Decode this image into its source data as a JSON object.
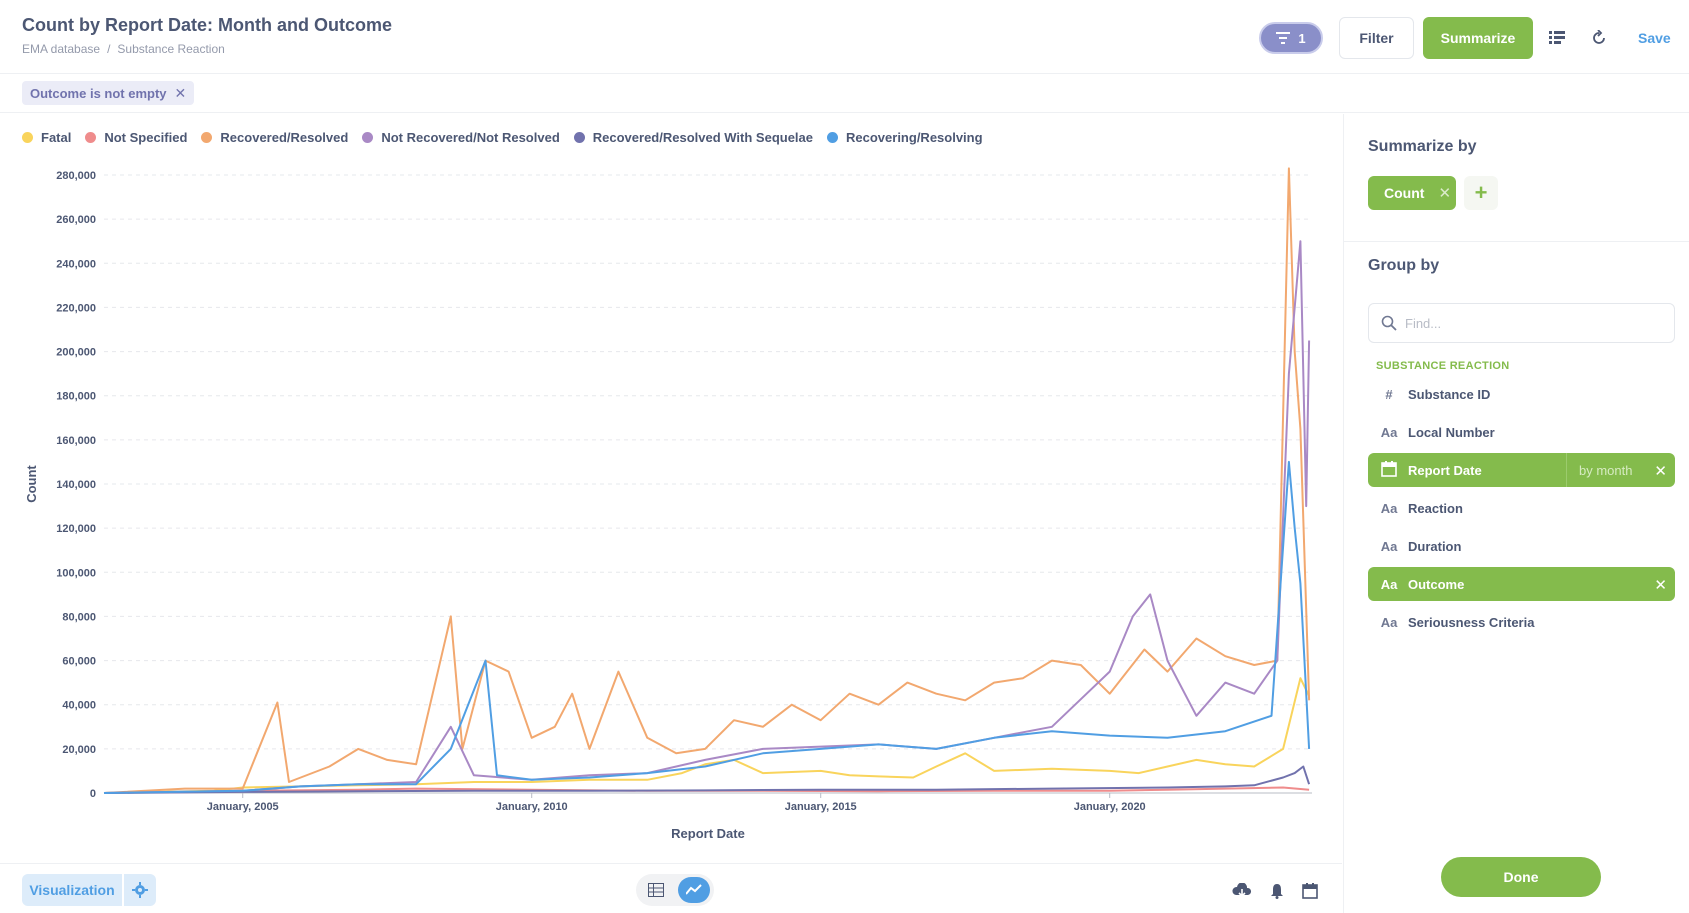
{
  "header": {
    "title": "Count by Report Date: Month and Outcome",
    "breadcrumb": [
      "EMA database",
      "Substance Reaction"
    ],
    "filter_count": "1",
    "filter_label": "Filter",
    "summarize_label": "Summarize",
    "save_label": "Save"
  },
  "filters": [
    {
      "label": "Outcome is not empty"
    }
  ],
  "chart_data": {
    "type": "line",
    "xlabel": "Report Date",
    "ylabel": "Count",
    "ylim": [
      0,
      280000
    ],
    "y_ticks": [
      "0",
      "20,000",
      "40,000",
      "60,000",
      "80,000",
      "100,000",
      "120,000",
      "140,000",
      "160,000",
      "180,000",
      "200,000",
      "220,000",
      "240,000",
      "260,000",
      "280,000"
    ],
    "x_ticks": [
      "January, 2005",
      "January, 2010",
      "January, 2015",
      "January, 2020"
    ],
    "x_tick_years": [
      2005,
      2010,
      2015,
      2020
    ],
    "xlim": [
      2002.6,
      2023.5
    ],
    "legend_position": "top-left",
    "grid": true,
    "series": [
      {
        "name": "Fatal",
        "color": "#f9d45c",
        "points": [
          [
            2002.6,
            0
          ],
          [
            2004.5,
            1000
          ],
          [
            2005,
            2500
          ],
          [
            2007,
            3500
          ],
          [
            2008,
            4000
          ],
          [
            2009,
            5000
          ],
          [
            2010,
            5000
          ],
          [
            2011,
            6000
          ],
          [
            2012,
            6000
          ],
          [
            2012.6,
            9000
          ],
          [
            2013,
            13000
          ],
          [
            2013.5,
            15000
          ],
          [
            2014,
            9000
          ],
          [
            2015,
            10000
          ],
          [
            2015.5,
            8000
          ],
          [
            2016,
            7500
          ],
          [
            2016.6,
            7000
          ],
          [
            2017,
            12000
          ],
          [
            2017.5,
            18000
          ],
          [
            2018,
            10000
          ],
          [
            2019,
            11000
          ],
          [
            2020,
            10000
          ],
          [
            2020.5,
            9000
          ],
          [
            2021,
            12000
          ],
          [
            2021.5,
            15000
          ],
          [
            2022,
            13000
          ],
          [
            2022.5,
            12000
          ],
          [
            2023,
            20000
          ],
          [
            2023.3,
            52000
          ],
          [
            2023.45,
            44000
          ]
        ]
      },
      {
        "name": "Not Specified",
        "color": "#ef8c8c",
        "points": [
          [
            2002.6,
            0
          ],
          [
            2004.5,
            500
          ],
          [
            2005,
            1000
          ],
          [
            2007,
            1500
          ],
          [
            2008,
            2000
          ],
          [
            2010,
            1500
          ],
          [
            2012,
            1000
          ],
          [
            2014,
            1000
          ],
          [
            2016,
            800
          ],
          [
            2018,
            1000
          ],
          [
            2020,
            1000
          ],
          [
            2021,
            1500
          ],
          [
            2022,
            2000
          ],
          [
            2023,
            2500
          ],
          [
            2023.45,
            1500
          ]
        ]
      },
      {
        "name": "Recovered/Resolved",
        "color": "#f2a86f",
        "points": [
          [
            2002.6,
            0
          ],
          [
            2004,
            2000
          ],
          [
            2005,
            2000
          ],
          [
            2005.6,
            41000
          ],
          [
            2005.8,
            5000
          ],
          [
            2006.5,
            12000
          ],
          [
            2007,
            20000
          ],
          [
            2007.5,
            15000
          ],
          [
            2008,
            13000
          ],
          [
            2008.6,
            80000
          ],
          [
            2008.8,
            20000
          ],
          [
            2009.2,
            60000
          ],
          [
            2009.6,
            55000
          ],
          [
            2010,
            25000
          ],
          [
            2010.4,
            30000
          ],
          [
            2010.7,
            45000
          ],
          [
            2011,
            20000
          ],
          [
            2011.5,
            55000
          ],
          [
            2012,
            25000
          ],
          [
            2012.5,
            18000
          ],
          [
            2013,
            20000
          ],
          [
            2013.5,
            33000
          ],
          [
            2014,
            30000
          ],
          [
            2014.5,
            40000
          ],
          [
            2015,
            33000
          ],
          [
            2015.5,
            45000
          ],
          [
            2016,
            40000
          ],
          [
            2016.5,
            50000
          ],
          [
            2017,
            45000
          ],
          [
            2017.5,
            42000
          ],
          [
            2018,
            50000
          ],
          [
            2018.5,
            52000
          ],
          [
            2019,
            60000
          ],
          [
            2019.5,
            58000
          ],
          [
            2020,
            45000
          ],
          [
            2020.6,
            65000
          ],
          [
            2021,
            55000
          ],
          [
            2021.5,
            70000
          ],
          [
            2022,
            62000
          ],
          [
            2022.5,
            58000
          ],
          [
            2022.9,
            60000
          ],
          [
            2023.1,
            283000
          ],
          [
            2023.2,
            200000
          ],
          [
            2023.3,
            165000
          ],
          [
            2023.45,
            42000
          ]
        ]
      },
      {
        "name": "Not Recovered/Not Resolved",
        "color": "#a989c5",
        "points": [
          [
            2002.6,
            0
          ],
          [
            2005,
            1000
          ],
          [
            2006,
            3000
          ],
          [
            2007,
            4000
          ],
          [
            2008,
            5000
          ],
          [
            2008.6,
            30000
          ],
          [
            2009,
            8000
          ],
          [
            2010,
            6000
          ],
          [
            2011,
            8000
          ],
          [
            2012,
            9000
          ],
          [
            2013,
            15000
          ],
          [
            2014,
            20000
          ],
          [
            2015,
            21000
          ],
          [
            2016,
            22000
          ],
          [
            2017,
            20000
          ],
          [
            2018,
            25000
          ],
          [
            2019,
            30000
          ],
          [
            2019.6,
            45000
          ],
          [
            2020,
            55000
          ],
          [
            2020.4,
            80000
          ],
          [
            2020.7,
            90000
          ],
          [
            2021,
            60000
          ],
          [
            2021.5,
            35000
          ],
          [
            2022,
            50000
          ],
          [
            2022.5,
            45000
          ],
          [
            2022.9,
            60000
          ],
          [
            2023.1,
            190000
          ],
          [
            2023.2,
            220000
          ],
          [
            2023.3,
            250000
          ],
          [
            2023.4,
            130000
          ],
          [
            2023.45,
            205000
          ]
        ]
      },
      {
        "name": "Recovered/Resolved With Sequelae",
        "color": "#7172ad",
        "points": [
          [
            2002.6,
            0
          ],
          [
            2005,
            500
          ],
          [
            2007,
            800
          ],
          [
            2009,
            1000
          ],
          [
            2011,
            1000
          ],
          [
            2013,
            1200
          ],
          [
            2015,
            1500
          ],
          [
            2017,
            1500
          ],
          [
            2019,
            2000
          ],
          [
            2021,
            2500
          ],
          [
            2022,
            3000
          ],
          [
            2022.5,
            3500
          ],
          [
            2023,
            7000
          ],
          [
            2023.2,
            9000
          ],
          [
            2023.35,
            12000
          ],
          [
            2023.45,
            4000
          ]
        ]
      },
      {
        "name": "Recovering/Resolving",
        "color": "#509ee3",
        "points": [
          [
            2002.6,
            0
          ],
          [
            2005,
            1000
          ],
          [
            2006,
            3000
          ],
          [
            2007,
            4000
          ],
          [
            2008,
            4000
          ],
          [
            2008.6,
            20000
          ],
          [
            2009.2,
            60000
          ],
          [
            2009.4,
            8000
          ],
          [
            2010,
            6000
          ],
          [
            2011,
            7000
          ],
          [
            2012,
            9000
          ],
          [
            2013,
            12000
          ],
          [
            2014,
            18000
          ],
          [
            2015,
            20000
          ],
          [
            2016,
            22000
          ],
          [
            2017,
            20000
          ],
          [
            2018,
            25000
          ],
          [
            2019,
            28000
          ],
          [
            2020,
            26000
          ],
          [
            2021,
            25000
          ],
          [
            2022,
            28000
          ],
          [
            2022.8,
            35000
          ],
          [
            2023.1,
            150000
          ],
          [
            2023.2,
            120000
          ],
          [
            2023.3,
            95000
          ],
          [
            2023.45,
            20000
          ]
        ]
      }
    ]
  },
  "sidebar": {
    "summarize_title": "Summarize by",
    "metric": "Count",
    "add_label": "+",
    "group_title": "Group by",
    "find_placeholder": "Find...",
    "section_label": "SUBSTANCE REACTION",
    "fields": [
      {
        "icon": "#",
        "name": "Substance ID",
        "active": false
      },
      {
        "icon": "Aa",
        "name": "Local Number",
        "active": false
      },
      {
        "icon": "cal",
        "name": "Report Date",
        "active": true,
        "bucket": "by month"
      },
      {
        "icon": "Aa",
        "name": "Reaction",
        "active": false
      },
      {
        "icon": "Aa",
        "name": "Duration",
        "active": false
      },
      {
        "icon": "Aa",
        "name": "Outcome",
        "active": true
      },
      {
        "icon": "Aa",
        "name": "Seriousness Criteria",
        "active": false
      }
    ],
    "done_label": "Done"
  },
  "footer": {
    "visualization_label": "Visualization"
  }
}
